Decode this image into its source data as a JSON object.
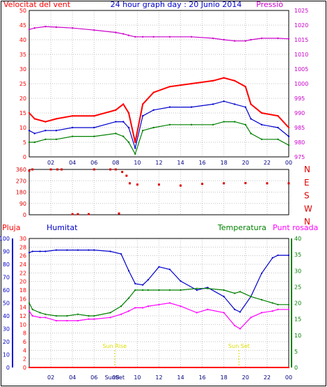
{
  "title": "24 hour graph day : 20 Junio 2014",
  "colors": {
    "wind_gust": "#ff0000",
    "wind_avg": "#0000cc",
    "wind_min": "#008000",
    "pressure": "#cc00cc",
    "direction": "#dd0000",
    "rain": "#ff0000",
    "humidity": "#0000cc",
    "temperature": "#008000",
    "dewpoint": "#ff00ff",
    "sun": "#dddd00",
    "grid": "#c0c0c0",
    "frame": "#000000"
  },
  "chart_data": [
    {
      "type": "line",
      "id": "wind_pressure",
      "title": "24 hour graph day : 20 Junio 2014",
      "left_label": "Velocitat del vent",
      "right_label": "Pressió",
      "y_left_ticks": [
        "0",
        "5",
        "10",
        "15",
        "20",
        "25",
        "30",
        "35",
        "40",
        "45",
        "50"
      ],
      "y_right_ticks": [
        "975",
        "980",
        "985",
        "990",
        "995",
        "1000",
        "1005",
        "1010",
        "1015",
        "1020",
        "1025"
      ],
      "ylim_left": [
        0,
        50
      ],
      "ylim_right": [
        975,
        1025
      ],
      "x_ticks": [
        "02",
        "04",
        "06",
        "08",
        "10",
        "12",
        "14",
        "16",
        "18",
        "20",
        "22",
        "00"
      ],
      "x_hours": [
        0,
        0.5,
        1.5,
        2.5,
        4,
        6,
        8,
        8.7,
        9.2,
        9.8,
        10.5,
        11.5,
        13,
        15,
        17,
        18,
        19,
        20,
        20.5,
        21.5,
        23,
        24
      ],
      "series": [
        {
          "key": "gust",
          "values": [
            15,
            13,
            12,
            13,
            14,
            14,
            16,
            18,
            15,
            5,
            18,
            22,
            24,
            25,
            26,
            27,
            26,
            24,
            18,
            15,
            14,
            10
          ]
        },
        {
          "key": "avg",
          "values": [
            9,
            8,
            9,
            9,
            10,
            10,
            12,
            12,
            10,
            3,
            14,
            16,
            17,
            17,
            18,
            19,
            18,
            17,
            13,
            11,
            10,
            7
          ]
        },
        {
          "key": "min",
          "values": [
            5,
            5,
            6,
            6,
            7,
            7,
            8,
            7,
            5,
            1,
            9,
            10,
            11,
            11,
            11,
            12,
            12,
            11,
            8,
            6,
            6,
            4
          ]
        },
        {
          "key": "pressure",
          "values": [
            1018.5,
            1019,
            1019.5,
            1019.3,
            1019.0,
            1018.3,
            1017.5,
            1017,
            1016.5,
            1016,
            1016,
            1016,
            1016,
            1016,
            1015.5,
            1015,
            1014.6,
            1014.6,
            1015,
            1015.5,
            1015.5,
            1015.3
          ]
        }
      ]
    },
    {
      "type": "scatter",
      "id": "wind_direction",
      "y_left_ticks": [
        "0",
        "90",
        "180",
        "270",
        "360"
      ],
      "ylim": [
        0,
        360
      ],
      "compass_labels": [
        "N",
        "W",
        "S",
        "E",
        "N"
      ],
      "x_hours": [
        0,
        0.3,
        2.0,
        2.6,
        3.0,
        4.0,
        4.5,
        5.5,
        6.0,
        7.5,
        8.0,
        8.3,
        8.6,
        9.0,
        9.3,
        10.0,
        12.0,
        14.0,
        16.0,
        18.0,
        20.0,
        22.0,
        24.0
      ],
      "values": [
        350,
        360,
        360,
        360,
        360,
        5,
        5,
        5,
        360,
        360,
        360,
        10,
        340,
        310,
        250,
        240,
        240,
        232,
        245,
        250,
        252,
        250,
        250
      ]
    },
    {
      "type": "line",
      "id": "temp_hum",
      "labels": {
        "rain": "Pluja",
        "humidity": "Humitat",
        "temperature": "Temperatura",
        "dewpoint": "Punt rosada"
      },
      "y_hum_ticks": [
        "0",
        "10",
        "20",
        "30",
        "40",
        "50",
        "60",
        "70",
        "80",
        "90",
        "100"
      ],
      "y_rain_ticks": [
        "0",
        "2",
        "4",
        "6",
        "8",
        "10",
        "12",
        "14",
        "16",
        "18",
        "20",
        "22",
        "24",
        "26",
        "28",
        "30"
      ],
      "y_temp_ticks": [
        "0",
        "5",
        "10",
        "15",
        "20",
        "25",
        "30",
        "35",
        "40"
      ],
      "ylim_humidity": [
        0,
        100
      ],
      "ylim_rain": [
        0,
        30
      ],
      "ylim_temperature": [
        0,
        40
      ],
      "x_ticks": [
        "02",
        "04",
        "06",
        "08",
        "10",
        "12",
        "14",
        "16",
        "18",
        "20",
        "22",
        "00"
      ],
      "x_hours": [
        0,
        0.3,
        1.0,
        1.5,
        2.5,
        3.5,
        4.5,
        5.5,
        6.0,
        7.5,
        8.5,
        9.2,
        9.8,
        10.5,
        11.0,
        12.0,
        13.0,
        14.0,
        15.5,
        16.5,
        18.0,
        19.0,
        19.5,
        20.5,
        21.5,
        22.5,
        23.0,
        24.0
      ],
      "series": [
        {
          "key": "humidity",
          "values": [
            89,
            90,
            90,
            90,
            91,
            91,
            91,
            91,
            91,
            90,
            88,
            75,
            65,
            64,
            68,
            78,
            76,
            67,
            60,
            62,
            55,
            45,
            43,
            55,
            73,
            85,
            87,
            87
          ]
        },
        {
          "key": "temperature",
          "values": [
            20,
            18,
            17,
            16.5,
            16,
            16,
            16.5,
            16,
            16,
            17,
            19,
            21.5,
            24,
            24,
            24,
            24,
            24,
            24,
            24.5,
            24.5,
            24,
            23,
            23.5,
            22,
            21,
            20,
            19.5,
            19.5
          ]
        },
        {
          "key": "dewpoint",
          "values": [
            17.5,
            16,
            15.5,
            15.5,
            14.5,
            14.5,
            14.5,
            15,
            15,
            15.5,
            16.5,
            17.5,
            18.5,
            18.5,
            19,
            19.5,
            20,
            19,
            17,
            18,
            17,
            13,
            12,
            15.5,
            17,
            17.5,
            18,
            18
          ]
        },
        {
          "key": "rain",
          "values": [
            0,
            0,
            0,
            0,
            0,
            0,
            0,
            0,
            0,
            0,
            0,
            0,
            0,
            0,
            0,
            0,
            0,
            0,
            0,
            0,
            0,
            0,
            0,
            0,
            0,
            0,
            0,
            0
          ]
        }
      ],
      "events": [
        {
          "label": "Sun Rise",
          "hour": 7.9
        },
        {
          "label": "Sun Set",
          "hour": 19.4
        }
      ],
      "x_extra_label": "SunSet"
    }
  ]
}
